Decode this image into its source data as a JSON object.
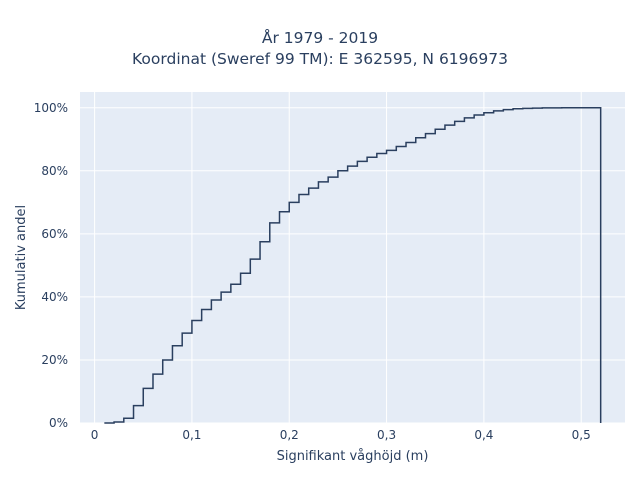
{
  "chart_data": {
    "type": "line",
    "line_shape": "step",
    "title_lines": [
      "År 1979 - 2019",
      "Koordinat (Sweref 99 TM): E 362595, N 6196973"
    ],
    "xlabel": "Signifikant våghöjd (m)",
    "ylabel": "Kumulativ andel",
    "xlim": [
      -0.015,
      0.545
    ],
    "ylim": [
      0,
      1.05
    ],
    "x_ticks": [
      0,
      0.1,
      0.2,
      0.3,
      0.4,
      0.5
    ],
    "x_tick_labels": [
      "0",
      "0,1",
      "0,2",
      "0,3",
      "0,4",
      "0,5"
    ],
    "y_ticks": [
      0,
      0.2,
      0.4,
      0.6,
      0.8,
      1.0
    ],
    "y_tick_labels": [
      "0%",
      "20%",
      "40%",
      "60%",
      "80%",
      "100%"
    ],
    "grid": true,
    "series": [
      {
        "x": [
          0.01,
          0.02,
          0.03,
          0.04,
          0.05,
          0.06,
          0.07,
          0.08,
          0.09,
          0.1,
          0.11,
          0.12,
          0.13,
          0.14,
          0.15,
          0.16,
          0.17,
          0.18,
          0.19,
          0.2,
          0.21,
          0.22,
          0.23,
          0.24,
          0.25,
          0.26,
          0.27,
          0.28,
          0.29,
          0.3,
          0.31,
          0.32,
          0.33,
          0.34,
          0.35,
          0.36,
          0.37,
          0.38,
          0.39,
          0.4,
          0.41,
          0.42,
          0.43,
          0.44,
          0.45,
          0.46,
          0.47,
          0.48,
          0.49,
          0.5,
          0.51,
          0.52
        ],
        "y": [
          0.0,
          0.003,
          0.015,
          0.055,
          0.11,
          0.155,
          0.2,
          0.245,
          0.285,
          0.325,
          0.36,
          0.39,
          0.415,
          0.44,
          0.475,
          0.52,
          0.575,
          0.635,
          0.67,
          0.7,
          0.725,
          0.745,
          0.765,
          0.78,
          0.8,
          0.815,
          0.83,
          0.843,
          0.855,
          0.865,
          0.877,
          0.89,
          0.905,
          0.918,
          0.932,
          0.945,
          0.957,
          0.968,
          0.977,
          0.984,
          0.99,
          0.994,
          0.997,
          0.998,
          0.999,
          0.9995,
          0.9998,
          1.0,
          1.0,
          1.0,
          1.0,
          0.0
        ],
        "color": "#2a3f5f"
      }
    ]
  },
  "colors": {
    "plot_background": "#e5ecf6",
    "grid": "#ffffff",
    "line": "#2a3f5f",
    "text": "#2a3f5f"
  }
}
